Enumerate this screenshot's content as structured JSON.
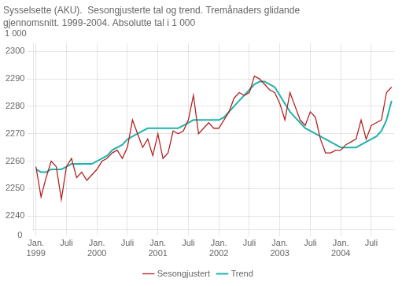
{
  "chart_data": {
    "type": "line",
    "title": "Sysselsette (AKU).  Sesongjusterte tal og trend. Tremånaders glidande",
    "subtitle": "gjennomsnitt. 1999-2004. Absolutte tal i 1 000",
    "ylabel": "1 000",
    "annotations": [
      "0"
    ],
    "categories": [
      "Jan.\n1999",
      null,
      null,
      null,
      null,
      null,
      "Juli",
      null,
      null,
      null,
      null,
      null,
      "Jan.\n2000",
      null,
      null,
      null,
      null,
      null,
      "Juli",
      null,
      null,
      null,
      null,
      null,
      "Jan.\n2001",
      null,
      null,
      null,
      null,
      null,
      "Juli",
      null,
      null,
      null,
      null,
      null,
      "Jan.\n2002",
      null,
      null,
      null,
      null,
      null,
      "Juli",
      null,
      null,
      null,
      null,
      null,
      "Jan.\n2003",
      null,
      null,
      null,
      null,
      null,
      "Juli",
      null,
      null,
      null,
      null,
      null,
      "Jan.\n2004",
      null,
      null,
      null,
      null,
      null,
      "Juli",
      null,
      null,
      null,
      null
    ],
    "series": [
      {
        "name": "Sesongjustert",
        "color": "#b22222",
        "values": [
          2258,
          2247,
          2254,
          2260,
          2258,
          2246,
          2258,
          2261,
          2254,
          2256,
          2253,
          2255,
          2257,
          2260,
          2261,
          2263,
          2264,
          2261,
          2265,
          2275,
          2270,
          2265,
          2268,
          2262,
          2270,
          2261,
          2263,
          2271,
          2270,
          2271,
          2275,
          2284,
          2270,
          2272,
          2274,
          2272,
          2272,
          2275,
          2278,
          2283,
          2285,
          2284,
          2285,
          2291,
          2290,
          2288,
          2286,
          2285,
          2281,
          2275,
          2285,
          2280,
          2275,
          2273,
          2278,
          2276,
          2268,
          2263,
          2263,
          2264,
          2264,
          2266,
          2267,
          2268,
          2275,
          2268,
          2273,
          2274,
          2275,
          2285,
          2287
        ]
      },
      {
        "name": "Trend",
        "color": "#20b2aa",
        "values": [
          2257,
          2256,
          2256,
          2257,
          2257,
          2257,
          2258,
          2259,
          2259,
          2259,
          2259,
          2259,
          2260,
          2261,
          2262,
          2264,
          2265,
          2266,
          2268,
          2269,
          2270,
          2271,
          2272,
          2272,
          2272,
          2272,
          2272,
          2272,
          2272,
          2273,
          2274,
          2275,
          2275,
          2275,
          2275,
          2275,
          2275,
          2276,
          2278,
          2280,
          2282,
          2284,
          2286,
          2288,
          2289,
          2289,
          2288,
          2287,
          2284,
          2281,
          2278,
          2276,
          2274,
          2272,
          2271,
          2270,
          2269,
          2268,
          2267,
          2266,
          2265,
          2265,
          2265,
          2265,
          2266,
          2267,
          2268,
          2269,
          2271,
          2275,
          2282
        ]
      }
    ],
    "ylim": [
      2235,
      2303
    ],
    "yticks": [
      2240,
      2250,
      2260,
      2270,
      2280,
      2290,
      2300
    ],
    "grid": true,
    "legend": "bottom"
  }
}
